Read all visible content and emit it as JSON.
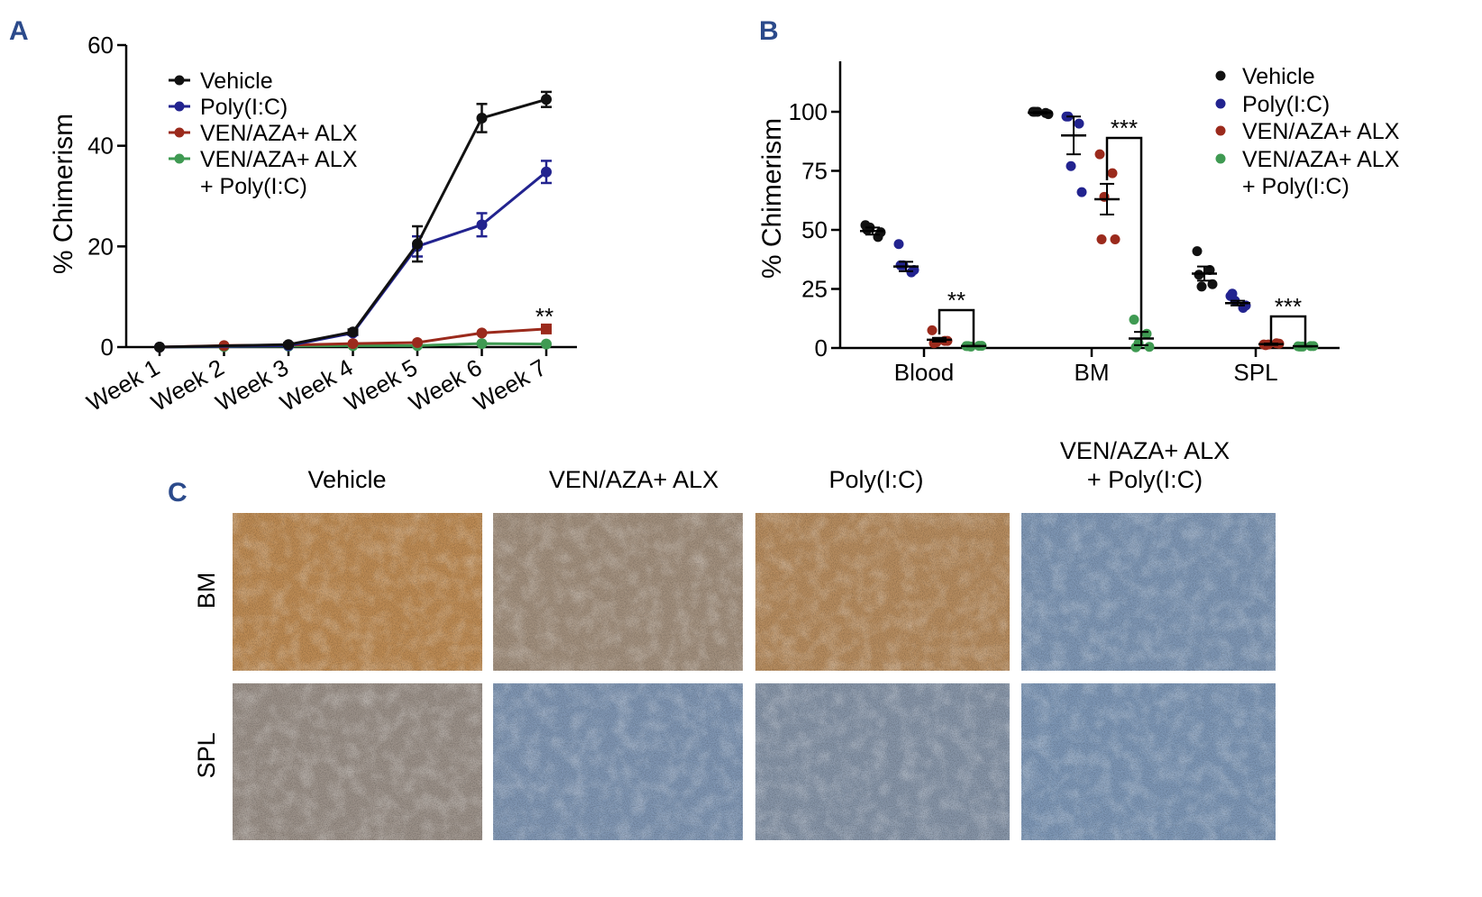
{
  "panels": {
    "a": "A",
    "b": "B",
    "c": "C"
  },
  "colors": {
    "vehicle": "#111111",
    "polyic": "#22238f",
    "venaza_alx": "#9b2a1c",
    "combo": "#3f9a52"
  },
  "chart_data": [
    {
      "type": "line",
      "panel": "A",
      "categories": [
        "Week 1",
        "Week 2",
        "Week 3",
        "Week 4",
        "Week 5",
        "Week 6",
        "Week 7"
      ],
      "ylabel": "% Chimerism",
      "xlabel": "",
      "ylim": [
        0,
        60
      ],
      "yticks": [
        "0",
        "20",
        "40",
        "60"
      ],
      "legend_position": "top-left",
      "annotations": [
        {
          "text": "**",
          "at": "Week 7"
        }
      ],
      "series": [
        {
          "name": "Vehicle",
          "values": [
            0,
            null,
            0.5,
            3,
            20.5,
            45.5,
            49.2
          ],
          "errors": [
            0,
            null,
            0.3,
            0.5,
            3.5,
            2.8,
            1.5
          ]
        },
        {
          "name": "Poly(I:C)",
          "values": [
            0,
            null,
            0.3,
            2.8,
            20,
            24.3,
            34.8
          ],
          "errors": [
            0,
            null,
            0.2,
            0.4,
            2,
            2.3,
            2.2
          ]
        },
        {
          "name": "VEN/AZA+ ALX",
          "values": [
            0,
            0.3,
            0.4,
            0.7,
            0.9,
            2.8,
            3.6
          ],
          "errors": [
            0,
            0,
            0,
            0,
            0,
            0,
            0
          ]
        },
        {
          "name": "VEN/AZA+ ALX\n+ Poly(I:C)",
          "values": [
            0,
            0.1,
            0.2,
            0.3,
            0.3,
            0.7,
            0.6
          ],
          "errors": [
            0,
            0,
            0,
            0,
            0,
            0,
            0
          ]
        }
      ]
    },
    {
      "type": "scatter",
      "panel": "B",
      "categories": [
        "Blood",
        "BM",
        "SPL"
      ],
      "ylabel": "% Chimerism",
      "xlabel": "",
      "ylim": [
        0,
        120
      ],
      "yticks": [
        "0",
        "25",
        "50",
        "75",
        "100"
      ],
      "legend_position": "top-right",
      "series": [
        {
          "name": "Vehicle",
          "means": [
            49.5,
            99.6,
            31.5
          ],
          "sem": [
            1.5,
            0.3,
            3
          ],
          "points": [
            [
              52,
              47,
              51,
              49,
              50
            ],
            [
              100,
              99.5,
              100,
              99,
              100
            ],
            [
              41,
              33,
              26,
              27,
              31
            ]
          ]
        },
        {
          "name": "Poly(I:C)",
          "means": [
            34.5,
            90,
            19
          ],
          "sem": [
            2,
            8,
            1
          ],
          "points": [
            [
              44,
              32,
              35,
              33,
              35
            ],
            [
              98,
              95,
              77,
              66,
              98
            ],
            [
              22,
              17,
              20,
              18,
              23
            ]
          ]
        },
        {
          "name": "VEN/AZA+ ALX",
          "means": [
            3.5,
            63,
            1.6
          ],
          "sem": [
            0.8,
            6.5,
            0.3
          ],
          "points": [
            [
              7.5,
              3,
              2.5,
              3,
              2
            ],
            [
              82,
              74,
              64,
              46,
              46
            ],
            [
              1.5,
              2,
              1.5,
              1.8,
              1.2
            ]
          ]
        },
        {
          "name": "VEN/AZA+ ALX\n+ Poly(I:C)",
          "means": [
            0.8,
            4,
            0.7
          ],
          "sem": [
            0.1,
            2.8,
            0.1
          ],
          "points": [
            [
              0.8,
              0.9,
              0.6,
              0.9,
              0.8
            ],
            [
              12,
              6,
              2,
              0.5,
              0.3
            ],
            [
              0.7,
              0.8,
              0.6,
              0.8,
              0.6
            ]
          ]
        }
      ],
      "annotations": [
        {
          "text": "**",
          "group": "Blood",
          "from": "VEN/AZA+ ALX",
          "to": "VEN/AZA+ ALX\n+ Poly(I:C)"
        },
        {
          "text": "***",
          "group": "BM",
          "from": "VEN/AZA+ ALX",
          "to": "VEN/AZA+ ALX\n+ Poly(I:C)"
        },
        {
          "text": "***",
          "group": "SPL",
          "from": "VEN/AZA+ ALX",
          "to": "VEN/AZA+ ALX\n+ Poly(I:C)"
        }
      ]
    }
  ],
  "panel_c": {
    "columns": [
      "Vehicle",
      "VEN/AZA+ ALX",
      "Poly(I:C)",
      "VEN/AZA+ ALX\n+ Poly(I:C)"
    ],
    "rows": [
      "BM",
      "SPL"
    ],
    "stain_brown_fraction": [
      [
        0.95,
        0.55,
        0.85,
        0.03
      ],
      [
        0.45,
        0.05,
        0.15,
        0.02
      ]
    ]
  }
}
